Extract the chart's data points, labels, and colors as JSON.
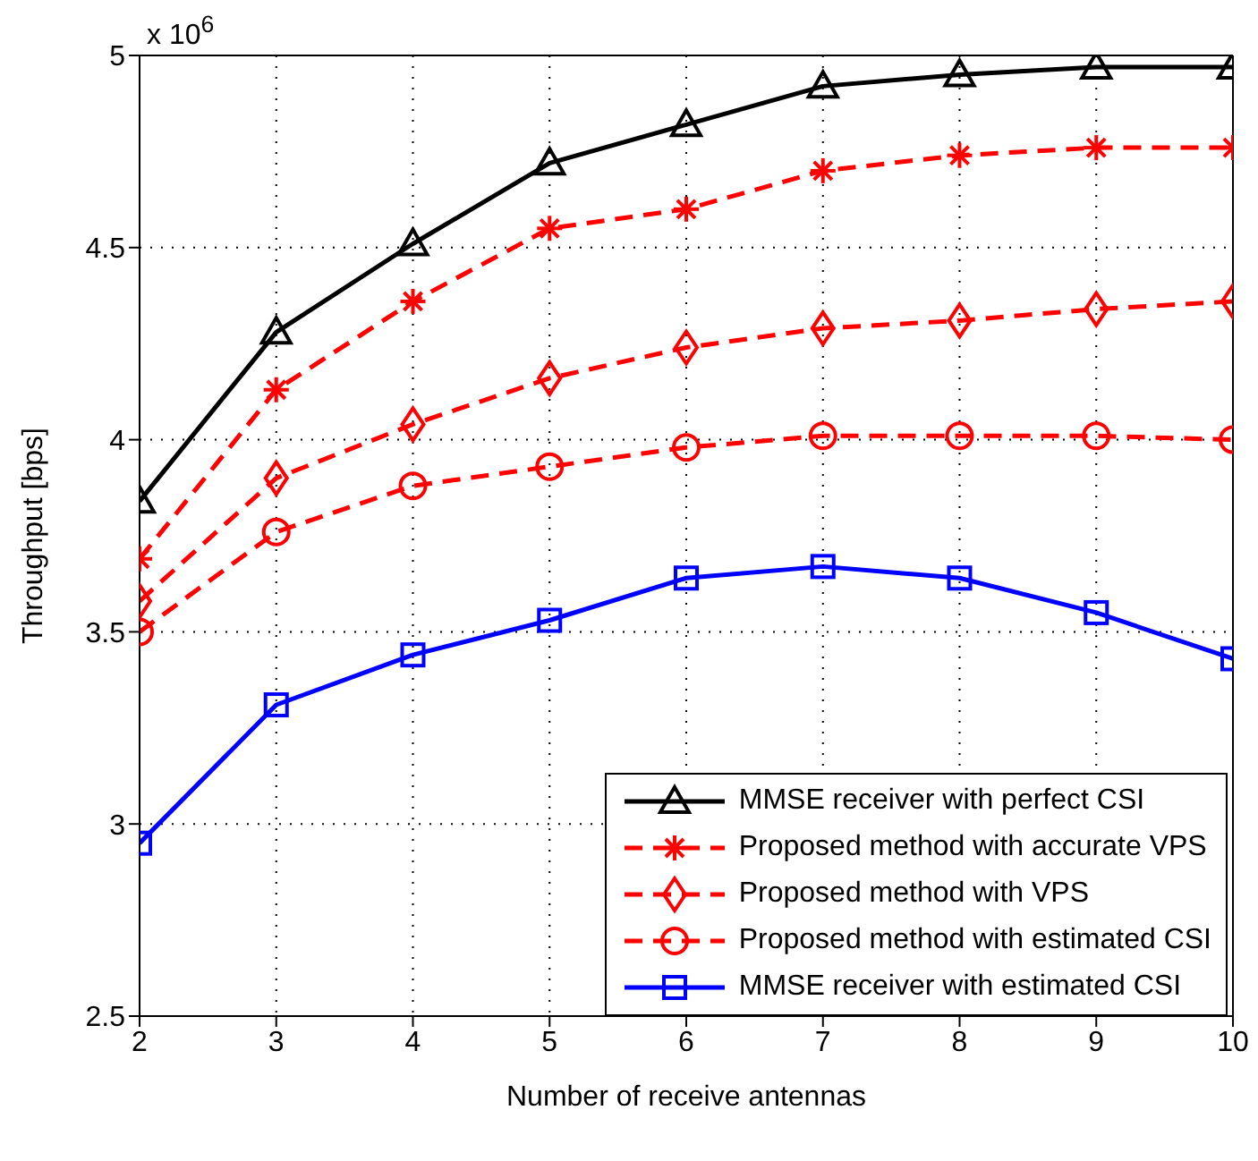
{
  "chart_data": {
    "type": "line",
    "xlabel": "Number of receive antennas",
    "ylabel": "Throughput [bps]",
    "annotations": [
      "x 10$^{6}$"
    ],
    "x": [
      2,
      3,
      4,
      5,
      6,
      7,
      8,
      9,
      10
    ],
    "xlim": [
      2,
      10
    ],
    "xticks": [
      2,
      3,
      4,
      5,
      6,
      7,
      8,
      9,
      10
    ],
    "ylim": [
      2.5,
      5
    ],
    "yticks": [
      2.5,
      3,
      3.5,
      4,
      4.5,
      5
    ],
    "grid": true,
    "legend": "bottom right",
    "series": [
      {
        "name": "MMSE receiver with perfect CSI",
        "color": "#000000",
        "marker": "triangle",
        "line_style": "solid",
        "values": [
          3.84,
          4.28,
          4.51,
          4.72,
          4.82,
          4.92,
          4.95,
          4.97,
          4.97
        ]
      },
      {
        "name": "Proposed method with accurate VPS",
        "color": "#ff0000",
        "marker": "cross",
        "line_style": "dashed",
        "values": [
          3.69,
          4.13,
          4.36,
          4.55,
          4.6,
          4.7,
          4.74,
          4.76,
          4.76
        ]
      },
      {
        "name": "Proposed method with VPS",
        "color": "#ff0000",
        "marker": "diamond",
        "line_style": "dashed",
        "values": [
          3.58,
          3.9,
          4.04,
          4.16,
          4.24,
          4.29,
          4.31,
          4.34,
          4.36
        ]
      },
      {
        "name": "Proposed method with estimated CSI",
        "color": "#ff0000",
        "marker": "circle",
        "line_style": "dashed",
        "values": [
          3.5,
          3.76,
          3.88,
          3.93,
          3.98,
          4.01,
          4.01,
          4.01,
          4
        ]
      },
      {
        "name": "MMSE receiver with estimated CSI",
        "color": "#0000ff",
        "marker": "square",
        "line_style": "solid",
        "values": [
          2.95,
          3.31,
          3.44,
          3.53,
          3.64,
          3.67,
          3.64,
          3.55,
          3.43
        ]
      }
    ]
  }
}
